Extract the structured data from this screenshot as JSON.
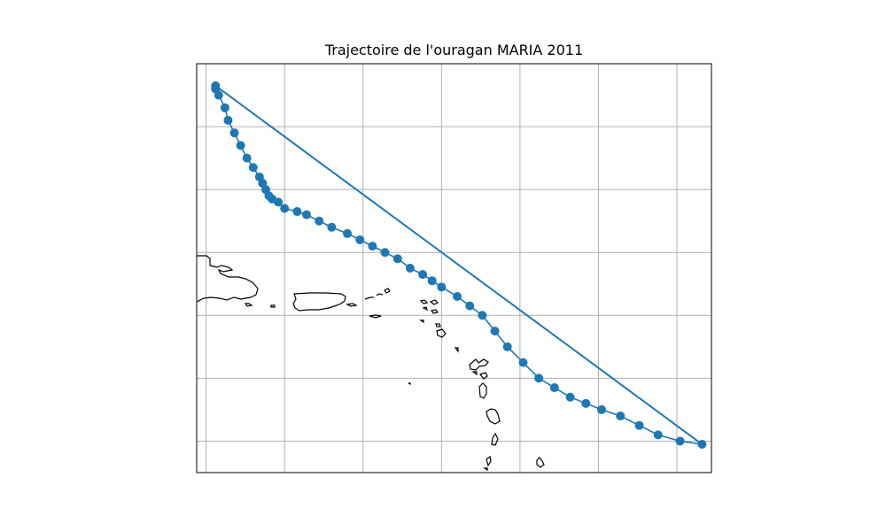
{
  "chart_data": {
    "type": "line",
    "title": "Trajectoire de l'ouragan MARIA 2011",
    "xlabel": "",
    "ylabel": "",
    "grid": true,
    "xlim": [
      -68.6,
      -52.2
    ],
    "ylim": [
      9.0,
      22.0
    ],
    "gridlines_x": [
      -68.3,
      -65.8,
      -63.3,
      -60.8,
      -58.3,
      -55.8,
      -53.3
    ],
    "gridlines_y": [
      10.0,
      12.0,
      14.0,
      16.0,
      18.0,
      20.0
    ],
    "series": [
      {
        "color": "#1f77b4",
        "marker": "circle",
        "points": [
          [
            -52.5,
            9.9
          ],
          [
            -53.2,
            10.0
          ],
          [
            -53.9,
            10.2
          ],
          [
            -54.5,
            10.5
          ],
          [
            -55.1,
            10.8
          ],
          [
            -55.7,
            11.0
          ],
          [
            -56.2,
            11.2
          ],
          [
            -56.7,
            11.4
          ],
          [
            -57.2,
            11.7
          ],
          [
            -57.7,
            12.0
          ],
          [
            -58.2,
            12.5
          ],
          [
            -58.7,
            13.0
          ],
          [
            -59.1,
            13.5
          ],
          [
            -59.5,
            14.0
          ],
          [
            -59.9,
            14.3
          ],
          [
            -60.3,
            14.6
          ],
          [
            -60.8,
            14.9
          ],
          [
            -61.1,
            15.1
          ],
          [
            -61.4,
            15.3
          ],
          [
            -61.8,
            15.5
          ],
          [
            -62.2,
            15.8
          ],
          [
            -62.6,
            16.0
          ],
          [
            -63.0,
            16.2
          ],
          [
            -63.4,
            16.4
          ],
          [
            -63.8,
            16.6
          ],
          [
            -64.3,
            16.8
          ],
          [
            -64.7,
            17.0
          ],
          [
            -65.1,
            17.2
          ],
          [
            -65.4,
            17.3
          ],
          [
            -65.8,
            17.4
          ],
          [
            -66.0,
            17.6
          ],
          [
            -66.2,
            17.7
          ],
          [
            -66.3,
            17.8
          ],
          [
            -66.4,
            18.0
          ],
          [
            -66.5,
            18.2
          ],
          [
            -66.6,
            18.4
          ],
          [
            -66.8,
            18.7
          ],
          [
            -67.0,
            19.0
          ],
          [
            -67.2,
            19.4
          ],
          [
            -67.4,
            19.8
          ],
          [
            -67.6,
            20.2
          ],
          [
            -67.7,
            20.6
          ],
          [
            -67.9,
            21.0
          ],
          [
            -68.0,
            21.3
          ],
          [
            -68.0,
            21.2
          ]
        ],
        "closing_segment": [
          [
            -68.0,
            21.3
          ],
          [
            -52.5,
            9.9
          ]
        ]
      }
    ],
    "coastlines": {
      "color": "#000000",
      "features": [
        "Hispaniola (east)",
        "Puerto Rico",
        "Virgin Islands",
        "Leeward Islands",
        "Guadeloupe",
        "Dominica",
        "Martinique",
        "Barbados"
      ]
    }
  }
}
